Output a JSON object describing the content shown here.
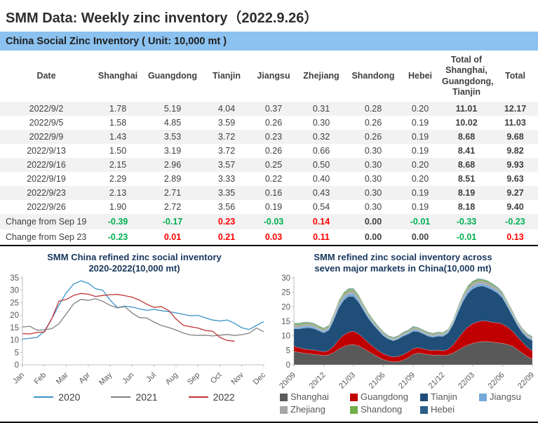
{
  "title": "SMM Data: Weekly zinc inventory（2022.9.26）",
  "section_header": "China Social Zinc Inventory ( Unit: 10,000 mt )",
  "colors": {
    "band_bg": "#8CC2F0",
    "row_stripe": "#F2F2F2",
    "positive_change": "#FF0000",
    "negative_change": "#00B050",
    "neutral_change": "#404040",
    "chart_title": "#17375D",
    "axis_text": "#595959"
  },
  "table": {
    "columns": [
      "Date",
      "Shanghai",
      "Guangdong",
      "Tianjin",
      "Jiangsu",
      "Zhejiang",
      "Shandong",
      "Hebei",
      "Total of Shanghai, Guangdong, Tianjin",
      "Total"
    ],
    "header_multiline_column": "Total of\nShanghai,\nGuangdong,\nTianjin",
    "rows": [
      [
        "2022/9/2",
        "1.78",
        "5.19",
        "4.04",
        "0.37",
        "0.31",
        "0.28",
        "0.20",
        "11.01",
        "12.17"
      ],
      [
        "2022/9/5",
        "1.58",
        "4.85",
        "3.59",
        "0.26",
        "0.30",
        "0.26",
        "0.19",
        "10.02",
        "11.03"
      ],
      [
        "2022/9/9",
        "1.43",
        "3.53",
        "3.72",
        "0.23",
        "0.32",
        "0.26",
        "0.19",
        "8.68",
        "9.68"
      ],
      [
        "2022/9/13",
        "1.50",
        "3.19",
        "3.72",
        "0.26",
        "0.66",
        "0.30",
        "0.19",
        "8.41",
        "9.82"
      ],
      [
        "2022/9/16",
        "2.15",
        "2.96",
        "3.57",
        "0.25",
        "0.50",
        "0.30",
        "0.20",
        "8.68",
        "9.93"
      ],
      [
        "2022/9/19",
        "2.29",
        "2.89",
        "3.33",
        "0.22",
        "0.40",
        "0.30",
        "0.20",
        "8.51",
        "9.63"
      ],
      [
        "2022/9/23",
        "2.13",
        "2.71",
        "3.35",
        "0.16",
        "0.43",
        "0.30",
        "0.19",
        "8.19",
        "9.27"
      ],
      [
        "2022/9/26",
        "1.90",
        "2.72",
        "3.56",
        "0.19",
        "0.54",
        "0.30",
        "0.19",
        "8.18",
        "9.40"
      ]
    ],
    "change_rows": [
      {
        "label": "Change from Sep 19",
        "values": [
          "-0.39",
          "-0.17",
          "0.23",
          "-0.03",
          "0.14",
          "0.00",
          "-0.01",
          "-0.33",
          "-0.23"
        ]
      },
      {
        "label": "Change from Sep 23",
        "values": [
          "-0.23",
          "0.01",
          "0.21",
          "0.03",
          "0.11",
          "0.00",
          "0.00",
          "-0.01",
          "0.13"
        ]
      }
    ]
  },
  "chart_data": [
    {
      "type": "line",
      "title": "SMM China refined zinc social inventory 2020-2022(10,000 mt)",
      "title_lines": [
        "SMM  China  refined  zinc  social  inventory",
        "2020-2022(10,000  mt)"
      ],
      "xlabel": "",
      "ylabel": "",
      "ylim": [
        0,
        35
      ],
      "ytick": 5,
      "grid": false,
      "legend_position": "bottom",
      "x_labels": [
        "Jan",
        "Feb",
        "Mar",
        "Apr",
        "May",
        "Jun",
        "Jul",
        "Aug",
        "Sep",
        "Oct",
        "Nov",
        "Dec"
      ],
      "x_span_months": 11,
      "series": [
        {
          "name": "2020",
          "color": "#3A93C9",
          "span_months": 11,
          "values": [
            10.3,
            10.7,
            11.0,
            13.5,
            18.5,
            24.0,
            29.0,
            32.5,
            33.8,
            32.8,
            30.6,
            30.0,
            26.0,
            23.0,
            23.6,
            23.2,
            22.5,
            21.9,
            22.3,
            21.8,
            21.4,
            20.9,
            20.3,
            19.7,
            19.9,
            18.9,
            18.0,
            17.6,
            18.0,
            16.7,
            14.9,
            14.2,
            15.8,
            17.4
          ]
        },
        {
          "name": "2021",
          "color": "#808080",
          "span_months": 11,
          "values": [
            15.2,
            15.5,
            13.9,
            14.1,
            14.5,
            16.5,
            20.5,
            24.5,
            26.3,
            25.9,
            26.6,
            25.5,
            23.9,
            22.9,
            23.4,
            20.8,
            19.0,
            18.8,
            17.2,
            15.8,
            15.0,
            14.0,
            12.8,
            12.0,
            11.8,
            11.9,
            11.6,
            11.9,
            12.2,
            11.8,
            12.1,
            12.7,
            14.8,
            13.3
          ]
        },
        {
          "name": "2022",
          "color": "#BE3536",
          "span_months": 9.67,
          "values": [
            12.6,
            12.4,
            13.0,
            13.2,
            18.5,
            25.6,
            26.3,
            27.9,
            28.7,
            28.4,
            27.5,
            27.9,
            28.2,
            28.3,
            27.8,
            27.2,
            26.0,
            24.4,
            23.1,
            23.4,
            21.8,
            18.4,
            15.9,
            15.3,
            14.8,
            13.8,
            13.5,
            11.0,
            9.8,
            9.5
          ]
        }
      ]
    },
    {
      "type": "area",
      "stacked": true,
      "title": "SMM refined zinc social inventory across seven major markets in China(10,000 mt)",
      "title_lines": [
        "SMM  refined  zinc  social  inventory  across",
        "seven  major  markets  in  China(10,000  mt)"
      ],
      "xlabel": "",
      "ylabel": "",
      "ylim": [
        0,
        30
      ],
      "ytick": 5,
      "grid": false,
      "legend_position": "bottom",
      "x_labels": [
        "20/09",
        "20/12",
        "21/03",
        "21/06",
        "21/09",
        "21/12",
        "22/03",
        "22/06",
        "22/09"
      ],
      "x_label_step_months": 3,
      "x_span_months": 24,
      "series": [
        {
          "name": "Shanghai",
          "color": "#595959",
          "values": [
            4.6,
            4.3,
            4.0,
            3.8,
            3.6,
            3.4,
            3.2,
            3.4,
            4.2,
            5.4,
            6.2,
            6.8,
            7.0,
            6.5,
            5.6,
            4.6,
            3.6,
            2.6,
            1.8,
            1.3,
            1.0,
            1.1,
            1.6,
            2.4,
            3.6,
            4.1,
            3.8,
            3.5,
            3.3,
            3.4,
            3.2,
            3.4,
            4.0,
            5.0,
            6.0,
            6.8,
            7.4,
            7.8,
            8.0,
            8.0,
            7.8,
            7.6,
            7.4,
            7.0,
            6.4,
            5.2,
            4.0,
            2.8,
            2.0
          ]
        },
        {
          "name": "Guangdong",
          "color": "#C00000",
          "values": [
            1.8,
            1.6,
            1.5,
            1.4,
            1.5,
            1.4,
            1.3,
            1.5,
            2.2,
            3.2,
            4.0,
            4.4,
            4.6,
            4.2,
            3.6,
            3.0,
            2.6,
            2.3,
            2.0,
            1.8,
            1.7,
            1.8,
            1.9,
            2.0,
            2.0,
            1.8,
            1.7,
            1.6,
            1.6,
            1.7,
            1.6,
            1.9,
            2.8,
            4.0,
            5.2,
            6.2,
            6.8,
            7.0,
            7.2,
            7.0,
            6.8,
            6.9,
            6.6,
            6.0,
            5.2,
            4.4,
            3.8,
            3.2,
            2.8
          ]
        },
        {
          "name": "Tianjin",
          "color": "#1F4E79",
          "values": [
            6.0,
            6.5,
            7.2,
            7.6,
            7.4,
            7.0,
            6.5,
            7.0,
            9.0,
            11.0,
            12.0,
            12.4,
            12.0,
            11.0,
            9.6,
            8.4,
            7.6,
            7.0,
            6.2,
            5.8,
            5.6,
            6.0,
            6.4,
            6.2,
            6.0,
            5.6,
            5.2,
            4.8,
            4.6,
            4.8,
            5.0,
            5.6,
            7.0,
            9.0,
            10.6,
            11.6,
            12.0,
            12.2,
            12.0,
            11.6,
            11.2,
            10.2,
            9.0,
            7.0,
            5.2,
            4.0,
            3.2,
            3.3,
            3.6
          ]
        },
        {
          "name": "Jiangsu",
          "color": "#74A9D8",
          "values": [
            0.5,
            0.5,
            0.6,
            0.6,
            0.6,
            0.5,
            0.5,
            0.5,
            0.7,
            0.8,
            0.9,
            0.9,
            0.9,
            0.8,
            0.7,
            0.6,
            0.5,
            0.4,
            0.4,
            0.3,
            0.3,
            0.3,
            0.4,
            0.4,
            0.5,
            0.4,
            0.4,
            0.4,
            0.4,
            0.4,
            0.4,
            0.4,
            0.5,
            0.7,
            0.8,
            0.9,
            0.9,
            0.9,
            0.8,
            0.8,
            0.7,
            0.7,
            0.7,
            0.6,
            0.6,
            0.5,
            0.5,
            0.4,
            0.4
          ]
        },
        {
          "name": "Zhejiang",
          "color": "#A6A6A6",
          "values": [
            0.8,
            0.8,
            0.7,
            0.7,
            0.7,
            0.6,
            0.6,
            0.6,
            0.8,
            0.9,
            1.0,
            1.0,
            1.0,
            0.9,
            0.8,
            0.7,
            0.6,
            0.5,
            0.5,
            0.4,
            0.4,
            0.4,
            0.5,
            0.5,
            0.6,
            0.5,
            0.5,
            0.5,
            0.5,
            0.5,
            0.5,
            0.5,
            0.6,
            0.8,
            0.9,
            1.0,
            1.0,
            1.0,
            0.9,
            0.9,
            0.8,
            0.8,
            0.8,
            0.7,
            0.7,
            0.6,
            0.6,
            0.5,
            0.5
          ]
        },
        {
          "name": "Shandong",
          "color": "#70AD47",
          "values": [
            0.5,
            0.5,
            0.5,
            0.4,
            0.4,
            0.4,
            0.4,
            0.4,
            0.5,
            0.6,
            0.6,
            0.6,
            0.6,
            0.6,
            0.5,
            0.5,
            0.4,
            0.4,
            0.3,
            0.3,
            0.3,
            0.3,
            0.3,
            0.3,
            0.4,
            0.3,
            0.3,
            0.3,
            0.3,
            0.3,
            0.3,
            0.3,
            0.4,
            0.5,
            0.5,
            0.6,
            0.6,
            0.6,
            0.5,
            0.5,
            0.5,
            0.4,
            0.4,
            0.4,
            0.4,
            0.3,
            0.3,
            0.3,
            0.3
          ]
        },
        {
          "name": "Hebei",
          "color": "#2C5F8A",
          "values": [
            0.2,
            0.2,
            0.2,
            0.2,
            0.2,
            0.2,
            0.2,
            0.2,
            0.2,
            0.2,
            0.2,
            0.2,
            0.2,
            0.2,
            0.2,
            0.2,
            0.2,
            0.2,
            0.2,
            0.2,
            0.2,
            0.2,
            0.2,
            0.2,
            0.2,
            0.2,
            0.2,
            0.2,
            0.2,
            0.2,
            0.2,
            0.2,
            0.2,
            0.2,
            0.2,
            0.2,
            0.2,
            0.2,
            0.2,
            0.2,
            0.2,
            0.2,
            0.2,
            0.2,
            0.2,
            0.2,
            0.2,
            0.2,
            0.2
          ]
        }
      ]
    }
  ]
}
